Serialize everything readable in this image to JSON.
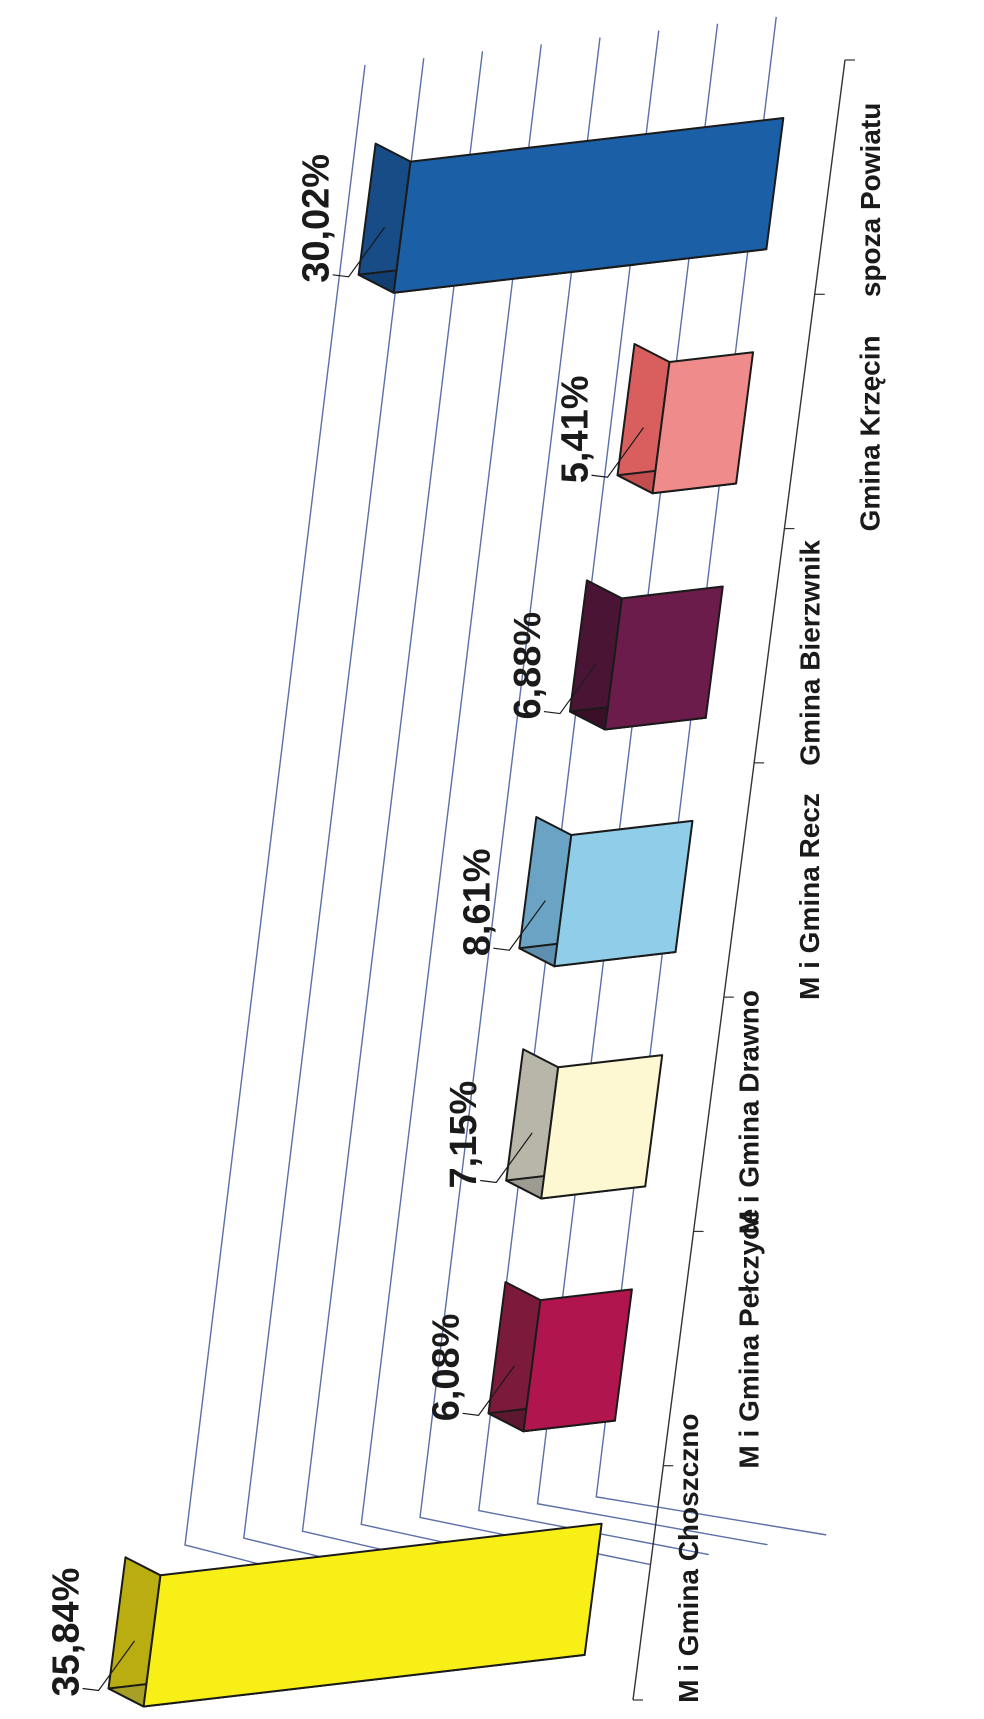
{
  "chart_data": {
    "type": "bar",
    "categories": [
      "M i Gmina Choszczno",
      "M i Gmina Pełczyce",
      "M i Gmina Drawno",
      "M i Gmina Recz",
      "Gmina Bierzwnik",
      "Gmina Krzęcin",
      "spoza Powiatu"
    ],
    "values": [
      35.84,
      6.08,
      7.15,
      8.61,
      6.88,
      5.41,
      30.02
    ],
    "value_labels": [
      "35,84%",
      "6,08%",
      "7,15%",
      "8,61%",
      "6,88%",
      "5,41%",
      "30,02%"
    ],
    "colors": {
      "front": [
        "#f7ef16",
        "#b0154e",
        "#fdf8d2",
        "#90cde8",
        "#6b1c4a",
        "#ef8b8b",
        "#1b5fa6"
      ],
      "side": [
        "#b9ad12",
        "#7b1a3a",
        "#b8b6a9",
        "#6aa3c4",
        "#4a1535",
        "#d95f5f",
        "#174c86"
      ],
      "top": [
        "#a7a027",
        "#5e1730",
        "#9e9c92",
        "#5f8fae",
        "#3a1029",
        "#c24e50",
        "#123f72"
      ]
    },
    "ylim": [
      0,
      40
    ],
    "grid": true,
    "orientation": "rotated-90-clockwise",
    "projection": "3d"
  }
}
